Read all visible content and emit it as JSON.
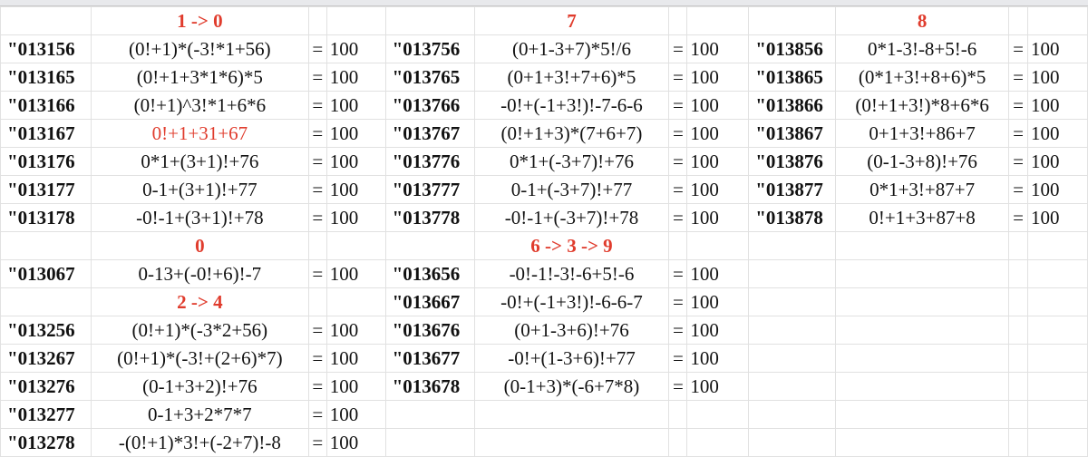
{
  "colors": {
    "header_red": "#e03c2d",
    "highlight_red": "#e03c2d",
    "text": "#111111",
    "grid": "#e1e1e1"
  },
  "rows": [
    [
      {
        "type": "header",
        "label": "1 -> 0"
      },
      {
        "type": "header",
        "label": "7"
      },
      {
        "type": "header",
        "label": "8"
      }
    ],
    [
      {
        "type": "entry",
        "code": "\"013156",
        "expr": "(0!+1)*(-3!*1+56)",
        "eq": "=",
        "value": "100"
      },
      {
        "type": "entry",
        "code": "\"013756",
        "expr": "(0+1-3+7)*5!/6",
        "eq": "=",
        "value": "100"
      },
      {
        "type": "entry",
        "code": "\"013856",
        "expr": "0*1-3!-8+5!-6",
        "eq": "=",
        "value": "100"
      }
    ],
    [
      {
        "type": "entry",
        "code": "\"013165",
        "expr": "(0!+1+3*1*6)*5",
        "eq": "=",
        "value": "100"
      },
      {
        "type": "entry",
        "code": "\"013765",
        "expr": "(0+1+3!+7+6)*5",
        "eq": "=",
        "value": "100"
      },
      {
        "type": "entry",
        "code": "\"013865",
        "expr": "(0*1+3!+8+6)*5",
        "eq": "=",
        "value": "100"
      }
    ],
    [
      {
        "type": "entry",
        "code": "\"013166",
        "expr": "(0!+1)^3!*1+6*6",
        "eq": "=",
        "value": "100"
      },
      {
        "type": "entry",
        "code": "\"013766",
        "expr": "-0!+(-1+3!)!-7-6-6",
        "eq": "=",
        "value": "100"
      },
      {
        "type": "entry",
        "code": "\"013866",
        "expr": "(0!+1+3!)*8+6*6",
        "eq": "=",
        "value": "100"
      }
    ],
    [
      {
        "type": "entry",
        "code": "\"013167",
        "expr": "0!+1+31+67",
        "eq": "=",
        "value": "100",
        "highlight": true
      },
      {
        "type": "entry",
        "code": "\"013767",
        "expr": "(0!+1+3)*(7+6+7)",
        "eq": "=",
        "value": "100"
      },
      {
        "type": "entry",
        "code": "\"013867",
        "expr": "0+1+3!+86+7",
        "eq": "=",
        "value": "100"
      }
    ],
    [
      {
        "type": "entry",
        "code": "\"013176",
        "expr": "0*1+(3+1)!+76",
        "eq": "=",
        "value": "100"
      },
      {
        "type": "entry",
        "code": "\"013776",
        "expr": "0*1+(-3+7)!+76",
        "eq": "=",
        "value": "100"
      },
      {
        "type": "entry",
        "code": "\"013876",
        "expr": "(0-1-3+8)!+76",
        "eq": "=",
        "value": "100"
      }
    ],
    [
      {
        "type": "entry",
        "code": "\"013177",
        "expr": "0-1+(3+1)!+77",
        "eq": "=",
        "value": "100"
      },
      {
        "type": "entry",
        "code": "\"013777",
        "expr": "0-1+(-3+7)!+77",
        "eq": "=",
        "value": "100"
      },
      {
        "type": "entry",
        "code": "\"013877",
        "expr": "0*1+3!+87+7",
        "eq": "=",
        "value": "100"
      }
    ],
    [
      {
        "type": "entry",
        "code": "\"013178",
        "expr": "-0!-1+(3+1)!+78",
        "eq": "=",
        "value": "100"
      },
      {
        "type": "entry",
        "code": "\"013778",
        "expr": "-0!-1+(-3+7)!+78",
        "eq": "=",
        "value": "100"
      },
      {
        "type": "entry",
        "code": "\"013878",
        "expr": "0!+1+3+87+8",
        "eq": "=",
        "value": "100"
      }
    ],
    [
      {
        "type": "header",
        "label": "0"
      },
      {
        "type": "header",
        "label": "6 -> 3 -> 9"
      },
      {
        "type": "empty"
      }
    ],
    [
      {
        "type": "entry",
        "code": "\"013067",
        "expr": "0-13+(-0!+6)!-7",
        "eq": "=",
        "value": "100"
      },
      {
        "type": "entry",
        "code": "\"013656",
        "expr": "-0!-1!-3!-6+5!-6",
        "eq": "=",
        "value": "100"
      },
      {
        "type": "empty"
      }
    ],
    [
      {
        "type": "header",
        "label": "2 -> 4"
      },
      {
        "type": "entry",
        "code": "\"013667",
        "expr": "-0!+(-1+3!)!-6-6-7",
        "eq": "=",
        "value": "100"
      },
      {
        "type": "empty"
      }
    ],
    [
      {
        "type": "entry",
        "code": "\"013256",
        "expr": "(0!+1)*(-3*2+56)",
        "eq": "=",
        "value": "100"
      },
      {
        "type": "entry",
        "code": "\"013676",
        "expr": "(0+1-3+6)!+76",
        "eq": "=",
        "value": "100"
      },
      {
        "type": "empty"
      }
    ],
    [
      {
        "type": "entry",
        "code": "\"013267",
        "expr": "(0!+1)*(-3!+(2+6)*7)",
        "eq": "=",
        "value": "100"
      },
      {
        "type": "entry",
        "code": "\"013677",
        "expr": "-0!+(1-3+6)!+77",
        "eq": "=",
        "value": "100"
      },
      {
        "type": "empty"
      }
    ],
    [
      {
        "type": "entry",
        "code": "\"013276",
        "expr": "(0-1+3+2)!+76",
        "eq": "=",
        "value": "100"
      },
      {
        "type": "entry",
        "code": "\"013678",
        "expr": "(0-1+3)*(-6+7*8)",
        "eq": "=",
        "value": "100"
      },
      {
        "type": "empty"
      }
    ],
    [
      {
        "type": "entry",
        "code": "\"013277",
        "expr": "0-1+3+2*7*7",
        "eq": "=",
        "value": "100"
      },
      {
        "type": "empty"
      },
      {
        "type": "empty"
      }
    ],
    [
      {
        "type": "entry",
        "code": "\"013278",
        "expr": "-(0!+1)*3!+(-2+7)!-8",
        "eq": "=",
        "value": "100"
      },
      {
        "type": "empty"
      },
      {
        "type": "empty"
      }
    ]
  ]
}
